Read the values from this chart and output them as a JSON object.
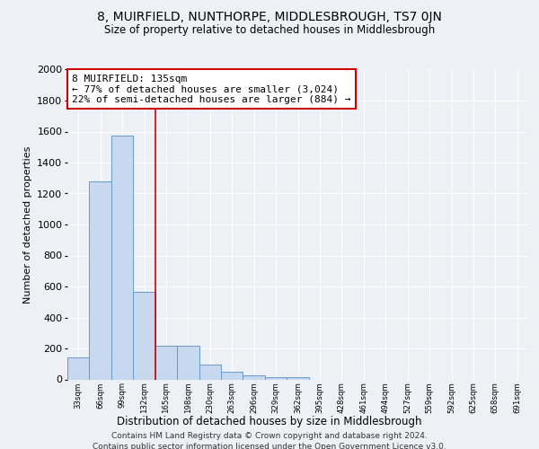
{
  "title": "8, MUIRFIELD, NUNTHORPE, MIDDLESBROUGH, TS7 0JN",
  "subtitle": "Size of property relative to detached houses in Middlesbrough",
  "xlabel": "Distribution of detached houses by size in Middlesbrough",
  "ylabel": "Number of detached properties",
  "bar_values": [
    140,
    1280,
    1575,
    565,
    220,
    220,
    93,
    50,
    27,
    15,
    15,
    0,
    0,
    0,
    0,
    0,
    0,
    0,
    0,
    0,
    0
  ],
  "bar_color": "#c8d8ee",
  "bar_edge_color": "#6699cc",
  "x_labels": [
    "33sqm",
    "66sqm",
    "99sqm",
    "132sqm",
    "165sqm",
    "198sqm",
    "230sqm",
    "263sqm",
    "296sqm",
    "329sqm",
    "362sqm",
    "395sqm",
    "428sqm",
    "461sqm",
    "494sqm",
    "527sqm",
    "559sqm",
    "592sqm",
    "625sqm",
    "658sqm",
    "691sqm"
  ],
  "ylim": [
    0,
    2000
  ],
  "yticks": [
    0,
    200,
    400,
    600,
    800,
    1000,
    1200,
    1400,
    1600,
    1800,
    2000
  ],
  "annotation_text_line1": "8 MUIRFIELD: 135sqm",
  "annotation_text_line2": "← 77% of detached houses are smaller (3,024)",
  "annotation_text_line3": "22% of semi-detached houses are larger (884) →",
  "vline_x": 3.5,
  "vline_color": "#cc0000",
  "footer_line1": "Contains HM Land Registry data © Crown copyright and database right 2024.",
  "footer_line2": "Contains public sector information licensed under the Open Government Licence v3.0.",
  "background_color": "#eef0f8",
  "plot_bg_color": "#eef0f8",
  "grid_color": "#ffffff",
  "annotation_box_edge_color": "#cc0000"
}
